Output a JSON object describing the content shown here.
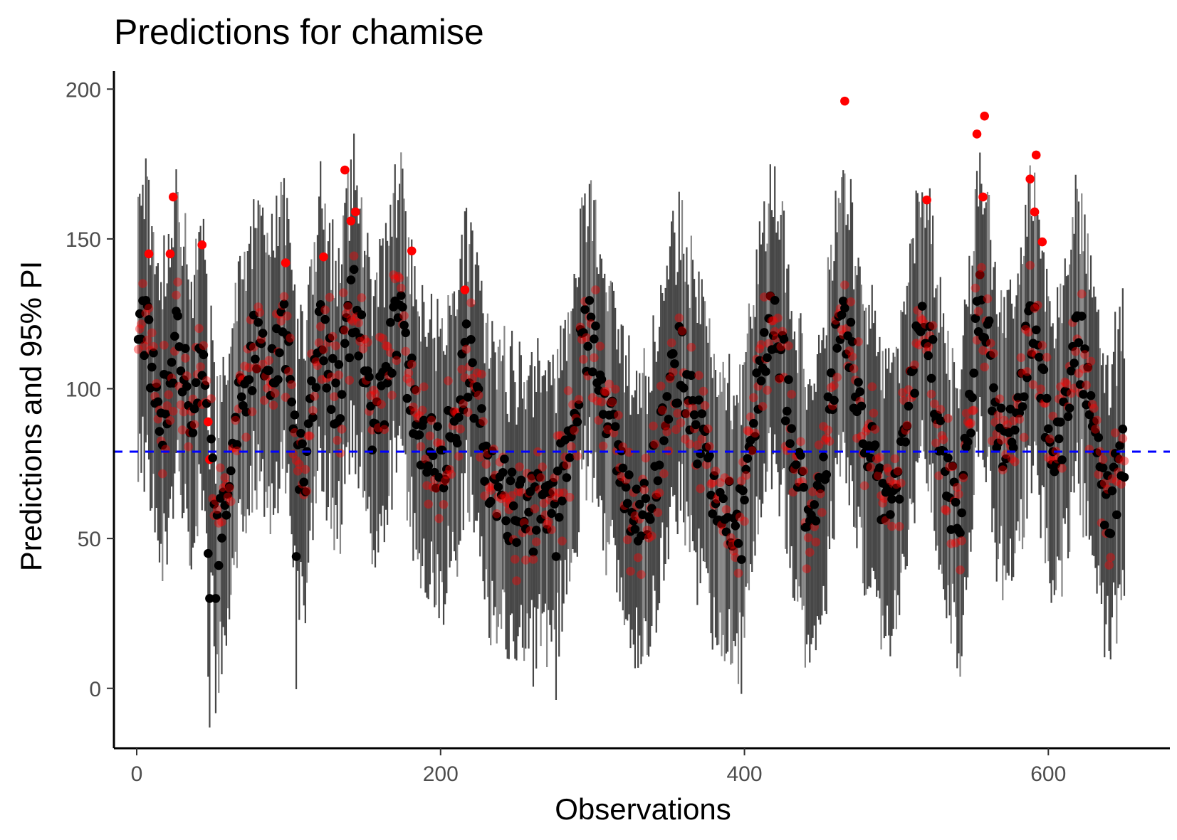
{
  "chart_data": {
    "type": "scatter",
    "title": "Predictions for chamise",
    "xlabel": "Observations",
    "ylabel": "Predictions and 95% PI",
    "xlim": [
      -15,
      680
    ],
    "ylim": [
      -20,
      206
    ],
    "x_ticks": [
      0,
      200,
      400,
      600
    ],
    "y_ticks": [
      0,
      50,
      100,
      150,
      200
    ],
    "x_tick_labels": [
      "0",
      "200",
      "400",
      "600"
    ],
    "y_tick_labels": [
      "0",
      "50",
      "100",
      "150",
      "200"
    ],
    "grid": false,
    "legend": "none",
    "n_observations": 650,
    "reference_line": {
      "y": 79,
      "style": "dashed",
      "color": "#0000ff"
    },
    "colors": {
      "interval": "#333333",
      "interval_light": "#7a7a7a",
      "prediction": "#000000",
      "observed": "#ff0000",
      "reference": "#0000ff"
    },
    "cycle_peaks": [
      {
        "x": 5,
        "pred": 122,
        "width": 8
      },
      {
        "x": 26,
        "pred": 115,
        "width": 8
      },
      {
        "x": 45,
        "pred": 108,
        "width": 9
      },
      {
        "x": 78,
        "pred": 112,
        "width": 11
      },
      {
        "x": 98,
        "pred": 122,
        "width": 9
      },
      {
        "x": 120,
        "pred": 124,
        "width": 9
      },
      {
        "x": 143,
        "pred": 128,
        "width": 9
      },
      {
        "x": 172,
        "pred": 120,
        "width": 11
      },
      {
        "x": 218,
        "pred": 112,
        "width": 8
      },
      {
        "x": 298,
        "pred": 122,
        "width": 12
      },
      {
        "x": 357,
        "pred": 108,
        "width": 11
      },
      {
        "x": 418,
        "pred": 125,
        "width": 11
      },
      {
        "x": 465,
        "pred": 125,
        "width": 9
      },
      {
        "x": 518,
        "pred": 124,
        "width": 9
      },
      {
        "x": 556,
        "pred": 130,
        "width": 8
      },
      {
        "x": 590,
        "pred": 122,
        "width": 8
      },
      {
        "x": 620,
        "pred": 114,
        "width": 8
      }
    ],
    "cycle_troughs": [
      {
        "x": 52,
        "pred": 44,
        "width": 7
      },
      {
        "x": 110,
        "pred": 52,
        "width": 10
      },
      {
        "x": 258,
        "pred": 58,
        "width": 28
      },
      {
        "x": 330,
        "pred": 58,
        "width": 12
      },
      {
        "x": 392,
        "pred": 58,
        "width": 14
      },
      {
        "x": 445,
        "pred": 60,
        "width": 10
      },
      {
        "x": 495,
        "pred": 62,
        "width": 10
      },
      {
        "x": 540,
        "pred": 60,
        "width": 10
      },
      {
        "x": 640,
        "pred": 62,
        "width": 8
      }
    ],
    "observed_highlights": [
      {
        "x": 24,
        "y": 164
      },
      {
        "x": 22,
        "y": 145
      },
      {
        "x": 43,
        "y": 148
      },
      {
        "x": 137,
        "y": 173
      },
      {
        "x": 141,
        "y": 156
      },
      {
        "x": 144,
        "y": 159
      },
      {
        "x": 123,
        "y": 144
      },
      {
        "x": 181,
        "y": 146
      },
      {
        "x": 216,
        "y": 133
      },
      {
        "x": 466,
        "y": 196
      },
      {
        "x": 553,
        "y": 185
      },
      {
        "x": 558,
        "y": 191
      },
      {
        "x": 557,
        "y": 164
      },
      {
        "x": 520,
        "y": 163
      },
      {
        "x": 588,
        "y": 170
      },
      {
        "x": 592,
        "y": 178
      },
      {
        "x": 591,
        "y": 159
      },
      {
        "x": 596,
        "y": 149
      },
      {
        "x": 8,
        "y": 145
      },
      {
        "x": 98,
        "y": 142
      }
    ],
    "prediction_lows": [
      {
        "x": 48,
        "y": 30
      },
      {
        "x": 52,
        "y": 30
      },
      {
        "x": 54,
        "y": 41
      },
      {
        "x": 47,
        "y": 45
      },
      {
        "x": 398,
        "y": 43
      },
      {
        "x": 276,
        "y": 44
      },
      {
        "x": 105,
        "y": 44
      }
    ]
  }
}
